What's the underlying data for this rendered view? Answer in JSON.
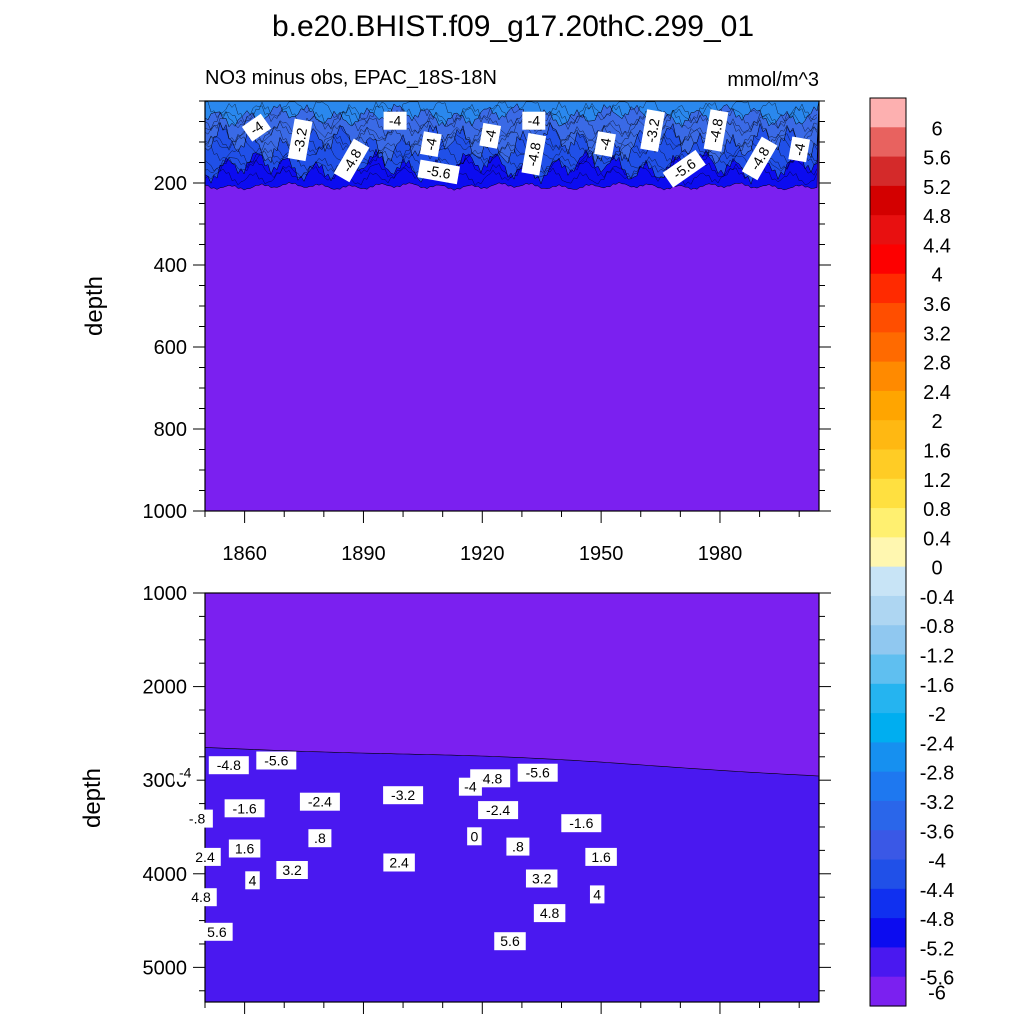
{
  "title": "b.e20.BHIST.f09_g17.20thC.299_01",
  "subtitle_left": "NO3 minus obs, EPAC_18S-18N",
  "units": "mmol/m^3",
  "colorbar_labels": [
    "6",
    "5.6",
    "5.2",
    "4.8",
    "4.4",
    "4",
    "3.6",
    "3.2",
    "2.8",
    "2.4",
    "2",
    "1.6",
    "1.2",
    "0.8",
    "0.4",
    "0",
    "-0.4",
    "-0.8",
    "-1.2",
    "-1.6",
    "-2",
    "-2.4",
    "-2.8",
    "-3.2",
    "-3.6",
    "-4",
    "-4.4",
    "-4.8",
    "-5.2",
    "-5.6",
    "-6"
  ],
  "colorbar_colors": [
    "#fdb0b0",
    "#e8625f",
    "#d42a2a",
    "#d30000",
    "#e81010",
    "#fd0000",
    "#ff2a00",
    "#ff4e00",
    "#ff6a00",
    "#ff8a00",
    "#ffa500",
    "#ffb812",
    "#ffcc25",
    "#ffe040",
    "#fff070",
    "#fff7b0",
    "#c8e4f6",
    "#aed6f2",
    "#90c8f0",
    "#5fbff0",
    "#25b4f0",
    "#00aef0",
    "#1690f0",
    "#1e78f0",
    "#2a66ea",
    "#3a58e6",
    "#2050e8",
    "#1030f0",
    "#0c0cf0",
    "#4a18f0",
    "#7b20f0"
  ],
  "chart_data": [
    {
      "type": "heatmap",
      "panel": "upper",
      "ylabel": "depth",
      "x_ticks": [
        "1860",
        "1890",
        "1920",
        "1950",
        "1980"
      ],
      "y_ticks": [
        "200",
        "400",
        "600",
        "800",
        "1000"
      ],
      "xlim": [
        1850,
        2005
      ],
      "ylim": [
        1000,
        0
      ],
      "contour_labels": [
        {
          "text": "-4",
          "x": 1863,
          "y": 65,
          "rot": -35
        },
        {
          "text": "-3.2",
          "x": 1874,
          "y": 95,
          "rot": -80
        },
        {
          "text": "-4.8",
          "x": 1887,
          "y": 145,
          "rot": -60
        },
        {
          "text": "-4",
          "x": 1898,
          "y": 48,
          "rot": 0
        },
        {
          "text": "-4",
          "x": 1907,
          "y": 105,
          "rot": -80
        },
        {
          "text": "-5.6",
          "x": 1909,
          "y": 173,
          "rot": 10
        },
        {
          "text": "-4",
          "x": 1922,
          "y": 85,
          "rot": -80
        },
        {
          "text": "-4",
          "x": 1933,
          "y": 48,
          "rot": 0
        },
        {
          "text": "-4.8",
          "x": 1933,
          "y": 130,
          "rot": -80
        },
        {
          "text": "-4",
          "x": 1951,
          "y": 105,
          "rot": -80
        },
        {
          "text": "-3.2",
          "x": 1963,
          "y": 72,
          "rot": -80
        },
        {
          "text": "-5.6",
          "x": 1971,
          "y": 165,
          "rot": -35
        },
        {
          "text": "-4.8",
          "x": 1979,
          "y": 72,
          "rot": -80
        },
        {
          "text": "-4.8",
          "x": 1990,
          "y": 140,
          "rot": -60
        },
        {
          "text": "-4",
          "x": 2000,
          "y": 118,
          "rot": -80
        }
      ]
    },
    {
      "type": "heatmap",
      "panel": "lower",
      "ylabel": "depth",
      "y_ticks": [
        "1000",
        "2000",
        "3000",
        "4000",
        "5000"
      ],
      "xlim": [
        1850,
        2005
      ],
      "ylim": [
        5370,
        1000
      ],
      "contour_labels": [
        {
          "text": "-5.6",
          "x": 1868,
          "y": 2790
        },
        {
          "text": "-4.8",
          "x": 1856,
          "y": 2840
        },
        {
          "text": "-4",
          "x": 1845,
          "y": 2920
        },
        {
          "text": "-5.6",
          "x": 1934,
          "y": 2920
        },
        {
          "text": "-4.8",
          "x": 1922,
          "y": 2980
        },
        {
          "text": "-4",
          "x": 1917,
          "y": 3070
        },
        {
          "text": "-3.2",
          "x": 1900,
          "y": 3160
        },
        {
          "text": "-2.4",
          "x": 1879,
          "y": 3230
        },
        {
          "text": "-2.4",
          "x": 1924,
          "y": 3320
        },
        {
          "text": "-1.6",
          "x": 1860,
          "y": 3300
        },
        {
          "text": "-.8",
          "x": 1848,
          "y": 3410
        },
        {
          "text": "-1.6",
          "x": 1945,
          "y": 3460
        },
        {
          "text": "0",
          "x": 1918,
          "y": 3600
        },
        {
          "text": ".8",
          "x": 1879,
          "y": 3620
        },
        {
          "text": ".8",
          "x": 1929,
          "y": 3710
        },
        {
          "text": "1.6",
          "x": 1860,
          "y": 3730
        },
        {
          "text": "2.4",
          "x": 1850,
          "y": 3820
        },
        {
          "text": "1.6",
          "x": 1950,
          "y": 3820
        },
        {
          "text": "2.4",
          "x": 1899,
          "y": 3880
        },
        {
          "text": "3.2",
          "x": 1872,
          "y": 3960
        },
        {
          "text": "3.2",
          "x": 1935,
          "y": 4050
        },
        {
          "text": "4",
          "x": 1862,
          "y": 4070
        },
        {
          "text": "4",
          "x": 1949,
          "y": 4220
        },
        {
          "text": "4.8",
          "x": 1849,
          "y": 4250
        },
        {
          "text": "4.8",
          "x": 1937,
          "y": 4420
        },
        {
          "text": "5.6",
          "x": 1853,
          "y": 4620
        },
        {
          "text": "5.6",
          "x": 1927,
          "y": 4720
        }
      ]
    }
  ]
}
